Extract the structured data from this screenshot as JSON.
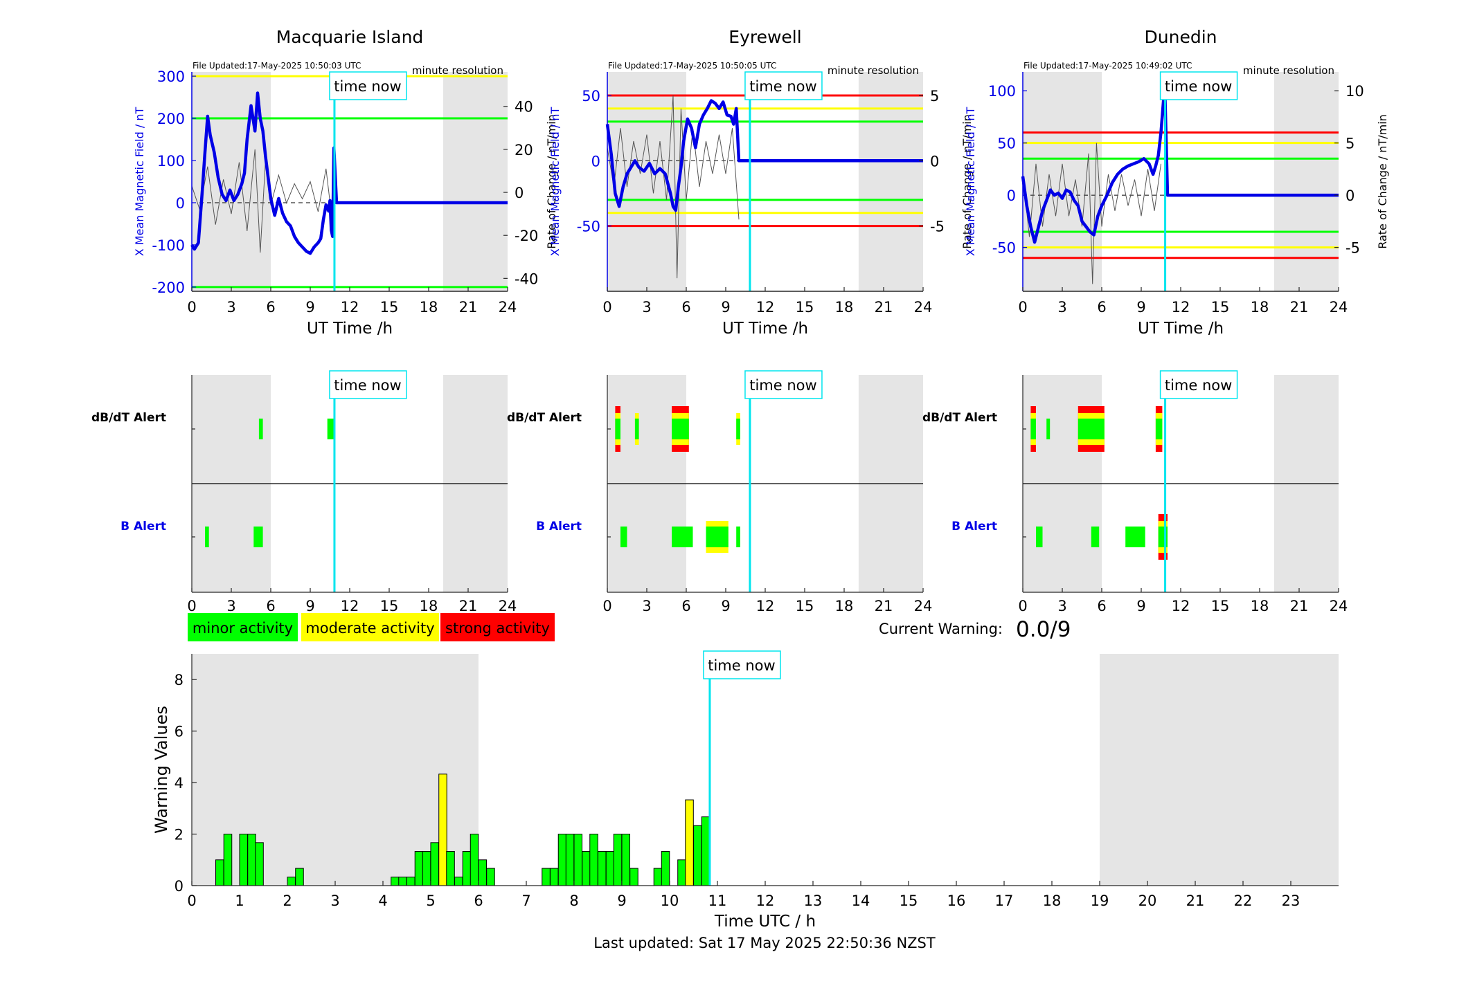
{
  "colors": {
    "mean_field": "#0000e6",
    "rate": "#555555",
    "now_line": "#00e5ee",
    "night_shade": "#e5e5e5",
    "minor": "#00ff00",
    "moderate": "#ffff00",
    "strong": "#ff0000",
    "axis": "#262626"
  },
  "shared": {
    "x_ticks": [
      "0",
      "3",
      "6",
      "9",
      "12",
      "15",
      "18",
      "21",
      "24"
    ],
    "x_label": "UT Time /h",
    "time_now_label": "time now",
    "resolution_label": "minute resolution",
    "left_axis_label": "X Mean Magnetic Field / nT",
    "right_axis_label": "Rate of Change / nT/min",
    "alert_db_label": "dB/dT Alert",
    "alert_b_label": "B Alert"
  },
  "legend": {
    "minor": "minor activity",
    "moderate": "moderate activity",
    "strong": "strong activity"
  },
  "current_warning": {
    "label": "Current Warning:",
    "value": "0.0/9"
  },
  "footer": {
    "last_updated": "Last updated: Sat 17 May 2025 22:50:36 NZST"
  },
  "chart_data": [
    {
      "type": "line",
      "title": "Macquarie Island",
      "file_updated": "File Updated:17-May-2025 10:50:03 UTC",
      "xlim": [
        0,
        24
      ],
      "now_hour": 10.84,
      "night": [
        [
          0,
          6
        ],
        [
          19.1,
          24
        ]
      ],
      "ylim": [
        -210,
        310
      ],
      "ylim_right": [
        -46,
        56
      ],
      "y_ticks": [
        "300",
        "200",
        "100",
        "0",
        "-100",
        "-200"
      ],
      "y_tick_values": [
        300,
        200,
        100,
        0,
        -100,
        -200
      ],
      "y2_ticks": [
        "40",
        "20",
        "0",
        "-20",
        "-40"
      ],
      "y2_tick_values": [
        40,
        20,
        0,
        -20,
        -40
      ],
      "thresholds": [
        {
          "value": 300,
          "level": "moderate"
        },
        {
          "value": 200,
          "level": "minor"
        },
        {
          "value": -200,
          "level": "minor"
        }
      ],
      "mean_field": {
        "x": [
          0,
          0.2,
          0.5,
          0.8,
          1,
          1.2,
          1.4,
          1.7,
          2,
          2.3,
          2.6,
          2.9,
          3.2,
          3.5,
          3.8,
          4,
          4.2,
          4.5,
          4.8,
          5,
          5.2,
          5.4,
          5.6,
          5.8,
          6,
          6.3,
          6.6,
          6.9,
          7.2,
          7.5,
          7.8,
          8.1,
          8.4,
          8.7,
          9,
          9.3,
          9.6,
          9.8,
          10,
          10.2,
          10.4,
          10.5,
          10.6,
          10.7,
          10.8,
          11,
          24
        ],
        "y": [
          -100,
          -110,
          -95,
          30,
          120,
          205,
          160,
          120,
          60,
          20,
          5,
          30,
          5,
          20,
          45,
          70,
          150,
          230,
          170,
          260,
          200,
          170,
          110,
          60,
          10,
          -30,
          10,
          -25,
          -45,
          -55,
          -80,
          -95,
          -105,
          -115,
          -120,
          -105,
          -95,
          -85,
          -40,
          -5,
          -20,
          5,
          -65,
          -80,
          130,
          0,
          0
        ]
      },
      "rate_of_change": {
        "x": [
          0,
          0.6,
          1.2,
          1.8,
          2.4,
          3,
          3.6,
          4.2,
          4.8,
          5.2,
          5.6,
          6,
          6.6,
          7.2,
          7.8,
          8.4,
          9,
          9.6,
          10.2,
          10.8
        ],
        "y": [
          3,
          -8,
          12,
          -15,
          6,
          -10,
          14,
          -18,
          20,
          -28,
          15,
          -6,
          8,
          -5,
          4,
          -3,
          5,
          -9,
          11,
          -20
        ]
      },
      "alerts": {
        "db_dt": [
          {
            "start": 5.1,
            "end": 5.4,
            "level": "minor"
          },
          {
            "start": 10.3,
            "end": 10.8,
            "level": "minor"
          }
        ],
        "b": [
          {
            "start": 1.0,
            "end": 1.3,
            "level": "minor"
          },
          {
            "start": 4.7,
            "end": 5.4,
            "level": "minor"
          }
        ]
      }
    },
    {
      "type": "line",
      "title": "Eyrewell",
      "file_updated": "File Updated:17-May-2025 10:50:05 UTC",
      "xlim": [
        0,
        24
      ],
      "now_hour": 10.84,
      "night": [
        [
          0,
          6
        ],
        [
          19.1,
          24
        ]
      ],
      "ylim": [
        -100,
        68
      ],
      "ylim_right": [
        -10,
        6.8
      ],
      "y_ticks": [
        "50",
        "0",
        "-50"
      ],
      "y_tick_values": [
        50,
        0,
        -50
      ],
      "y2_ticks": [
        "5",
        "0",
        "-5"
      ],
      "y2_tick_values": [
        5,
        0,
        -5
      ],
      "thresholds": [
        {
          "value": 50,
          "level": "strong"
        },
        {
          "value": 40,
          "level": "moderate"
        },
        {
          "value": 30,
          "level": "minor"
        },
        {
          "value": -30,
          "level": "minor"
        },
        {
          "value": -40,
          "level": "moderate"
        },
        {
          "value": -50,
          "level": "strong"
        }
      ],
      "mean_field": {
        "x": [
          0,
          0.3,
          0.6,
          0.9,
          1.2,
          1.5,
          1.8,
          2.1,
          2.4,
          2.8,
          3.2,
          3.6,
          4,
          4.4,
          4.8,
          5,
          5.2,
          5.4,
          5.6,
          5.8,
          6.1,
          6.4,
          6.7,
          7,
          7.3,
          7.6,
          7.9,
          8.2,
          8.5,
          8.8,
          9.1,
          9.4,
          9.6,
          9.8,
          10,
          24
        ],
        "y": [
          28,
          5,
          -25,
          -35,
          -20,
          -10,
          -5,
          0,
          -5,
          -8,
          -2,
          -10,
          -6,
          -10,
          -25,
          -35,
          -38,
          -20,
          -5,
          15,
          32,
          25,
          10,
          28,
          35,
          40,
          46,
          44,
          40,
          45,
          35,
          34,
          28,
          40,
          0,
          0
        ]
      },
      "rate_of_change": {
        "x": [
          0,
          0.5,
          1,
          1.5,
          2,
          2.5,
          3,
          3.5,
          4,
          4.5,
          5,
          5.3,
          5.6,
          6,
          6.5,
          7,
          7.5,
          8,
          8.5,
          9,
          9.5,
          10
        ],
        "y": [
          1,
          -2,
          2.5,
          -2,
          1.5,
          -1,
          2,
          -2.5,
          1.5,
          -3,
          5,
          -9,
          4,
          -3,
          2.5,
          -2,
          1.5,
          -1,
          2,
          -1,
          2.5,
          -4.5
        ]
      },
      "alerts": {
        "db_dt": [
          {
            "start": 0.6,
            "end": 1.0,
            "level": "strong"
          },
          {
            "start": 2.1,
            "end": 2.4,
            "level": "moderate"
          },
          {
            "start": 4.9,
            "end": 6.2,
            "level": "strong"
          },
          {
            "start": 9.8,
            "end": 10.1,
            "level": "moderate"
          }
        ],
        "b": [
          {
            "start": 1.0,
            "end": 1.5,
            "level": "minor"
          },
          {
            "start": 4.9,
            "end": 6.5,
            "level": "minor"
          },
          {
            "start": 7.5,
            "end": 9.2,
            "level": "moderate"
          },
          {
            "start": 9.8,
            "end": 10.1,
            "level": "minor"
          }
        ]
      }
    },
    {
      "type": "line",
      "title": "Dunedin",
      "file_updated": "File Updated:17-May-2025 10:49:02 UTC",
      "xlim": [
        0,
        24
      ],
      "now_hour": 10.82,
      "night": [
        [
          0,
          6
        ],
        [
          19.1,
          24
        ]
      ],
      "ylim": [
        -92,
        118
      ],
      "ylim_right": [
        -9.2,
        11.8
      ],
      "y_ticks": [
        "100",
        "50",
        "0",
        "-50"
      ],
      "y_tick_values": [
        100,
        50,
        0,
        -50
      ],
      "y2_ticks": [
        "10",
        "5",
        "0",
        "-5"
      ],
      "y2_tick_values": [
        10,
        5,
        0,
        -5
      ],
      "thresholds": [
        {
          "value": 60,
          "level": "strong"
        },
        {
          "value": 50,
          "level": "moderate"
        },
        {
          "value": 35,
          "level": "minor"
        },
        {
          "value": -35,
          "level": "minor"
        },
        {
          "value": -50,
          "level": "moderate"
        },
        {
          "value": -60,
          "level": "strong"
        }
      ],
      "mean_field": {
        "x": [
          0,
          0.3,
          0.6,
          0.9,
          1.2,
          1.5,
          1.8,
          2.1,
          2.4,
          2.7,
          3,
          3.3,
          3.6,
          3.9,
          4.2,
          4.5,
          4.8,
          5.1,
          5.4,
          5.7,
          6,
          6.4,
          6.8,
          7.2,
          7.6,
          8,
          8.4,
          8.8,
          9.2,
          9.6,
          9.9,
          10.1,
          10.3,
          10.5,
          10.7,
          10.8,
          11,
          24
        ],
        "y": [
          18,
          -10,
          -30,
          -45,
          -30,
          -15,
          -5,
          5,
          0,
          2,
          -3,
          5,
          3,
          -5,
          -10,
          -25,
          -30,
          -35,
          -38,
          -20,
          -10,
          0,
          12,
          20,
          25,
          28,
          30,
          32,
          35,
          30,
          20,
          28,
          38,
          60,
          92,
          100,
          0,
          0
        ]
      },
      "rate_of_change": {
        "x": [
          0,
          0.5,
          1,
          1.5,
          2,
          2.5,
          3,
          3.5,
          4,
          4.5,
          5,
          5.3,
          5.6,
          6,
          6.5,
          7,
          7.5,
          8,
          8.5,
          9,
          9.5,
          10,
          10.5
        ],
        "y": [
          2,
          -4,
          3,
          -3,
          2,
          -2,
          3,
          -2,
          1.5,
          -3,
          4,
          -8.5,
          5,
          -3,
          2,
          -1.5,
          2,
          -1,
          1.5,
          -2,
          2.5,
          -1.5,
          3
        ]
      },
      "alerts": {
        "db_dt": [
          {
            "start": 0.6,
            "end": 1.0,
            "level": "strong"
          },
          {
            "start": 1.8,
            "end": 2.0,
            "level": "minor"
          },
          {
            "start": 4.2,
            "end": 6.2,
            "level": "strong"
          },
          {
            "start": 10.1,
            "end": 10.6,
            "level": "strong"
          }
        ],
        "b": [
          {
            "start": 1.0,
            "end": 1.5,
            "level": "minor"
          },
          {
            "start": 5.2,
            "end": 5.8,
            "level": "minor"
          },
          {
            "start": 7.8,
            "end": 9.3,
            "level": "minor"
          },
          {
            "start": 10.3,
            "end": 11.0,
            "level": "strong"
          }
        ]
      }
    },
    {
      "type": "bar",
      "title": "",
      "xlabel": "Time UTC / h",
      "ylabel": "Warning Values",
      "xlim": [
        0,
        24
      ],
      "ylim": [
        0,
        9
      ],
      "now_hour": 10.84,
      "night": [
        [
          0,
          6
        ],
        [
          19,
          24
        ]
      ],
      "x_ticks": [
        "0",
        "1",
        "2",
        "3",
        "4",
        "5",
        "6",
        "7",
        "8",
        "9",
        "10",
        "11",
        "12",
        "13",
        "14",
        "15",
        "16",
        "17",
        "18",
        "19",
        "20",
        "21",
        "22",
        "23"
      ],
      "y_ticks": [
        "0",
        "2",
        "4",
        "6",
        "8"
      ],
      "y_tick_values": [
        0,
        2,
        4,
        6,
        8
      ],
      "bar_width": 0.167,
      "bars": [
        {
          "x": 0.5,
          "v": 1,
          "level": "minor"
        },
        {
          "x": 0.67,
          "v": 2,
          "level": "minor"
        },
        {
          "x": 1.0,
          "v": 2,
          "level": "minor"
        },
        {
          "x": 1.17,
          "v": 2,
          "level": "minor"
        },
        {
          "x": 1.33,
          "v": 1.67,
          "level": "minor"
        },
        {
          "x": 2.0,
          "v": 0.33,
          "level": "minor"
        },
        {
          "x": 2.17,
          "v": 0.67,
          "level": "minor"
        },
        {
          "x": 4.17,
          "v": 0.33,
          "level": "minor"
        },
        {
          "x": 4.33,
          "v": 0.33,
          "level": "minor"
        },
        {
          "x": 4.5,
          "v": 0.33,
          "level": "minor"
        },
        {
          "x": 4.67,
          "v": 1.33,
          "level": "minor"
        },
        {
          "x": 4.83,
          "v": 1.33,
          "level": "minor"
        },
        {
          "x": 5.0,
          "v": 1.67,
          "level": "minor"
        },
        {
          "x": 5.17,
          "v": 4.33,
          "level": "moderate"
        },
        {
          "x": 5.33,
          "v": 1.33,
          "level": "minor"
        },
        {
          "x": 5.5,
          "v": 0.33,
          "level": "minor"
        },
        {
          "x": 5.67,
          "v": 1.33,
          "level": "minor"
        },
        {
          "x": 5.83,
          "v": 2,
          "level": "minor"
        },
        {
          "x": 6.0,
          "v": 1,
          "level": "minor"
        },
        {
          "x": 6.17,
          "v": 0.67,
          "level": "minor"
        },
        {
          "x": 7.33,
          "v": 0.67,
          "level": "minor"
        },
        {
          "x": 7.5,
          "v": 0.67,
          "level": "minor"
        },
        {
          "x": 7.67,
          "v": 2,
          "level": "minor"
        },
        {
          "x": 7.83,
          "v": 2,
          "level": "minor"
        },
        {
          "x": 8.0,
          "v": 2,
          "level": "minor"
        },
        {
          "x": 8.17,
          "v": 1.33,
          "level": "minor"
        },
        {
          "x": 8.33,
          "v": 2,
          "level": "minor"
        },
        {
          "x": 8.5,
          "v": 1.33,
          "level": "minor"
        },
        {
          "x": 8.67,
          "v": 1.33,
          "level": "minor"
        },
        {
          "x": 8.83,
          "v": 2,
          "level": "minor"
        },
        {
          "x": 9.0,
          "v": 2,
          "level": "minor"
        },
        {
          "x": 9.17,
          "v": 0.67,
          "level": "minor"
        },
        {
          "x": 9.67,
          "v": 0.67,
          "level": "minor"
        },
        {
          "x": 9.83,
          "v": 1.33,
          "level": "minor"
        },
        {
          "x": 10.17,
          "v": 1,
          "level": "minor"
        },
        {
          "x": 10.33,
          "v": 3.33,
          "level": "moderate"
        },
        {
          "x": 10.5,
          "v": 2.33,
          "level": "minor"
        },
        {
          "x": 10.67,
          "v": 2.67,
          "level": "minor"
        }
      ]
    }
  ]
}
